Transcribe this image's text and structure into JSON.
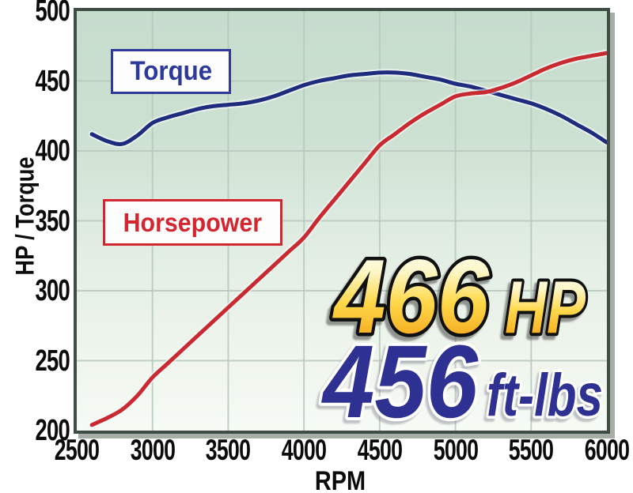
{
  "chart_data": {
    "type": "line",
    "title": "",
    "xlabel": "RPM",
    "ylabel": "HP / Torque",
    "xlim": [
      2500,
      6000
    ],
    "ylim": [
      200,
      500
    ],
    "grid": true,
    "x_ticks": [
      2500,
      3000,
      3500,
      4000,
      4500,
      5000,
      5500,
      6000
    ],
    "y_ticks": [
      500,
      450,
      400,
      350,
      300,
      250,
      200
    ],
    "legend_position": "inside-left, floating framed labels",
    "x": [
      2600,
      2700,
      2800,
      2900,
      3000,
      3100,
      3200,
      3300,
      3400,
      3500,
      3600,
      3700,
      3800,
      3900,
      4000,
      4100,
      4200,
      4300,
      4400,
      4500,
      4600,
      4700,
      4800,
      4900,
      5000,
      5100,
      5200,
      5300,
      5400,
      5500,
      5600,
      5700,
      5800,
      5900,
      6000
    ],
    "series": [
      {
        "name": "Torque",
        "color": "#1f2c7d",
        "values": [
          412,
          407,
          405,
          411,
          420,
          424,
          427,
          430,
          432,
          433,
          434,
          436,
          439,
          443,
          447,
          450,
          452,
          454,
          455,
          456,
          456,
          455,
          453,
          451,
          448,
          446,
          443,
          440,
          437,
          434,
          430,
          425,
          419,
          413,
          406
        ]
      },
      {
        "name": "Horsepower",
        "color": "#c92a32",
        "values": [
          204,
          209,
          215,
          225,
          238,
          248,
          258,
          268,
          278,
          288,
          298,
          308,
          318,
          328,
          338,
          352,
          365,
          378,
          391,
          404,
          412,
          420,
          427,
          433,
          439,
          441,
          442,
          445,
          449,
          454,
          459,
          463,
          466,
          468,
          470
        ]
      }
    ]
  },
  "legend": {
    "torque_label": "Torque",
    "horsepower_label": "Horsepower"
  },
  "headline": {
    "hp_value": "466",
    "hp_unit": "HP",
    "tq_value": "456",
    "tq_unit": "ft-lbs",
    "tq_color": "#2e3191"
  },
  "colors": {
    "plot_bg_top": "#c6dccd",
    "plot_bg_bottom": "#f6fbf5",
    "gridline": "#b7c9bd",
    "plot_border": "#3f4d45",
    "torque_curve": "#1f2c7d",
    "horsepower_curve": "#c92a32",
    "gold_top": "#ffffff",
    "gold_mid": "#fed84a",
    "gold_bottom": "#f2991b",
    "tick_text": "#0b0b0b"
  }
}
